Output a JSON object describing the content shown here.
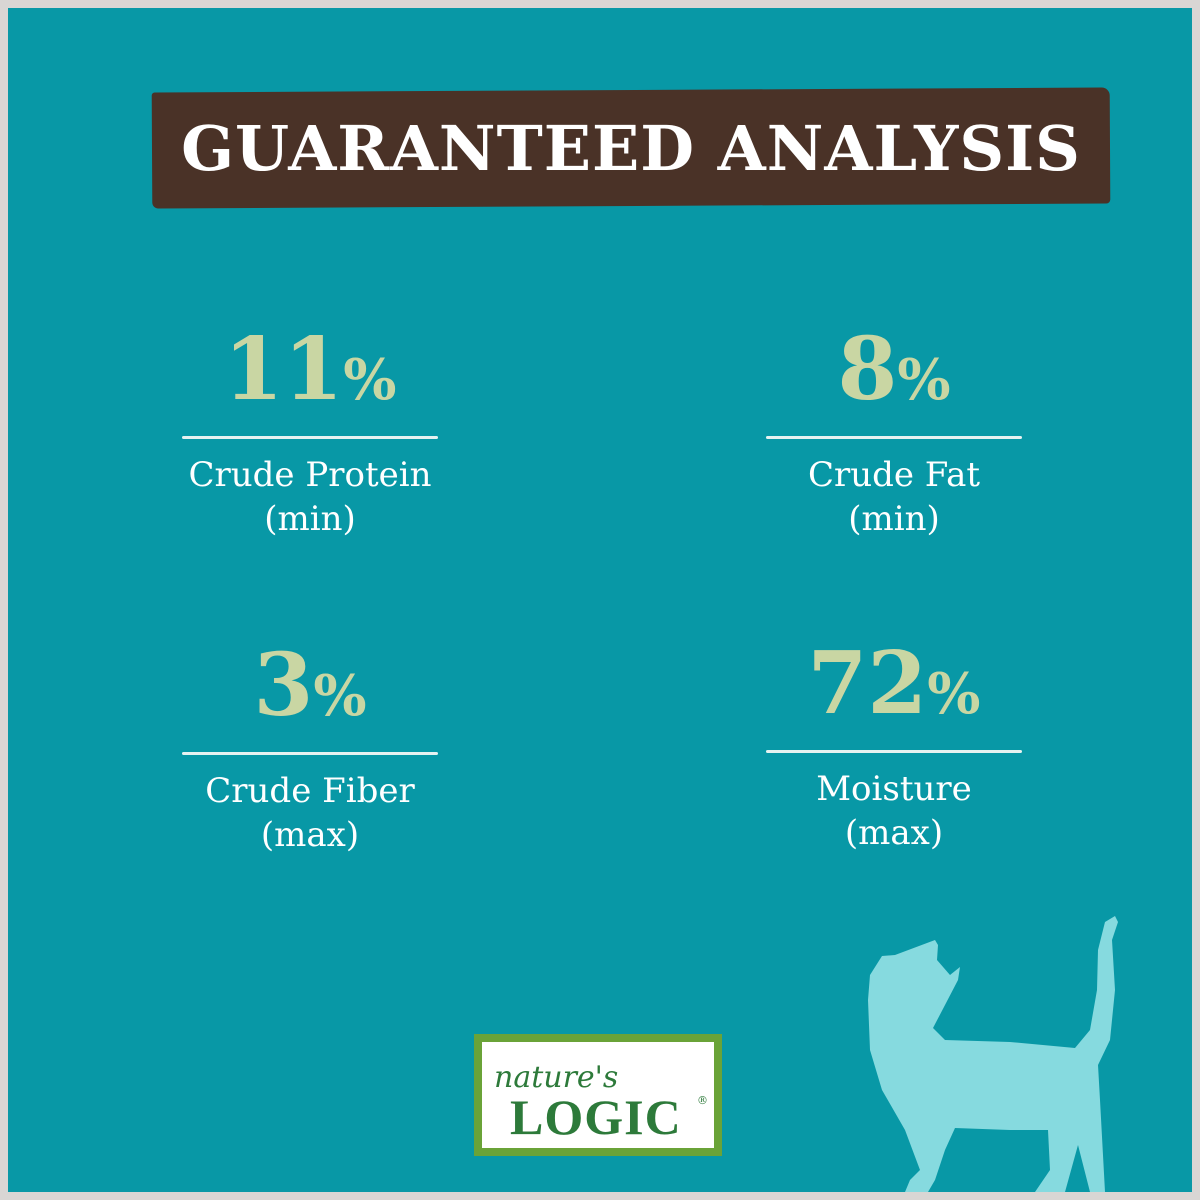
{
  "title": "GUARANTEED ANALYSIS",
  "stats": [
    {
      "value": "11",
      "unit": "%",
      "label": "Crude Protein",
      "qualifier": "(min)"
    },
    {
      "value": "8",
      "unit": "%",
      "label": "Crude Fat",
      "qualifier": "(min)"
    },
    {
      "value": "3",
      "unit": "%",
      "label": "Crude Fiber",
      "qualifier": "(max)"
    },
    {
      "value": "72",
      "unit": "%",
      "label": "Moisture",
      "qualifier": "(max)"
    }
  ],
  "logo": {
    "script": "nature's",
    "main": "LOGIC",
    "mark": "®"
  },
  "colors": {
    "background": "#0898a6",
    "banner": "#4a3227",
    "value": "#c9d6a3",
    "cat": "#86dadf",
    "logo_green": "#2d7a3a"
  },
  "icons": {
    "cat": "cat-silhouette-icon"
  }
}
